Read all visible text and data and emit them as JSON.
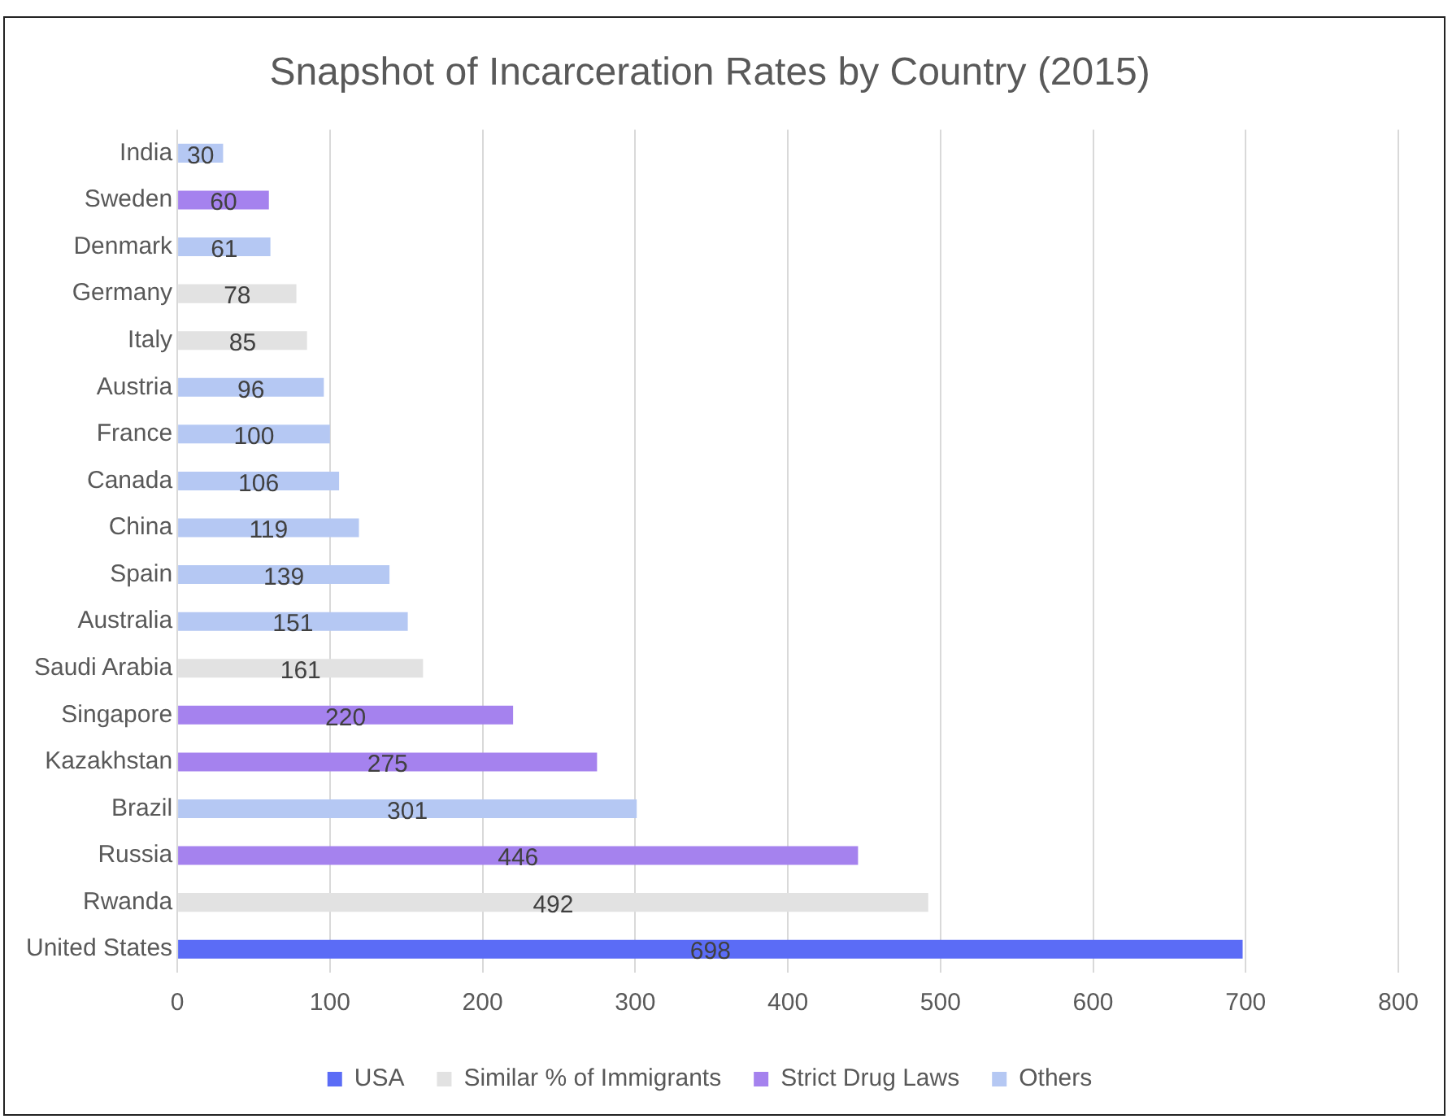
{
  "chart_data": {
    "type": "bar",
    "orientation": "horizontal",
    "title": "Snapshot of Incarceration Rates by Country (2015)",
    "categories": [
      "India",
      "Sweden",
      "Denmark",
      "Germany",
      "Italy",
      "Austria",
      "France",
      "Canada",
      "China",
      "Spain",
      "Australia",
      "Saudi Arabia",
      "Singapore",
      "Kazakhstan",
      "Brazil",
      "Russia",
      "Rwanda",
      "United States"
    ],
    "series": [
      {
        "name": "USA",
        "color": "#5b6cf6",
        "values": [
          null,
          null,
          null,
          null,
          null,
          null,
          null,
          null,
          null,
          null,
          null,
          null,
          null,
          null,
          null,
          null,
          null,
          698
        ]
      },
      {
        "name": "Similar % of Immigrants",
        "color": "#e2e2e2",
        "values": [
          null,
          null,
          null,
          78,
          85,
          null,
          null,
          null,
          null,
          null,
          null,
          161,
          null,
          null,
          null,
          null,
          492,
          null
        ]
      },
      {
        "name": "Strict Drug Laws",
        "color": "#a582ee",
        "values": [
          null,
          60,
          null,
          null,
          null,
          null,
          null,
          null,
          null,
          null,
          null,
          null,
          220,
          275,
          null,
          446,
          null,
          null
        ]
      },
      {
        "name": "Others",
        "color": "#b5c8f3",
        "values": [
          30,
          null,
          61,
          null,
          null,
          96,
          100,
          106,
          119,
          139,
          151,
          null,
          null,
          null,
          301,
          null,
          null,
          null
        ]
      }
    ],
    "xlim": [
      0,
      800
    ],
    "xticks": [
      0,
      100,
      200,
      300,
      400,
      500,
      600,
      700,
      800
    ],
    "grid": "x",
    "legend": "bottom",
    "data_labels": true
  }
}
